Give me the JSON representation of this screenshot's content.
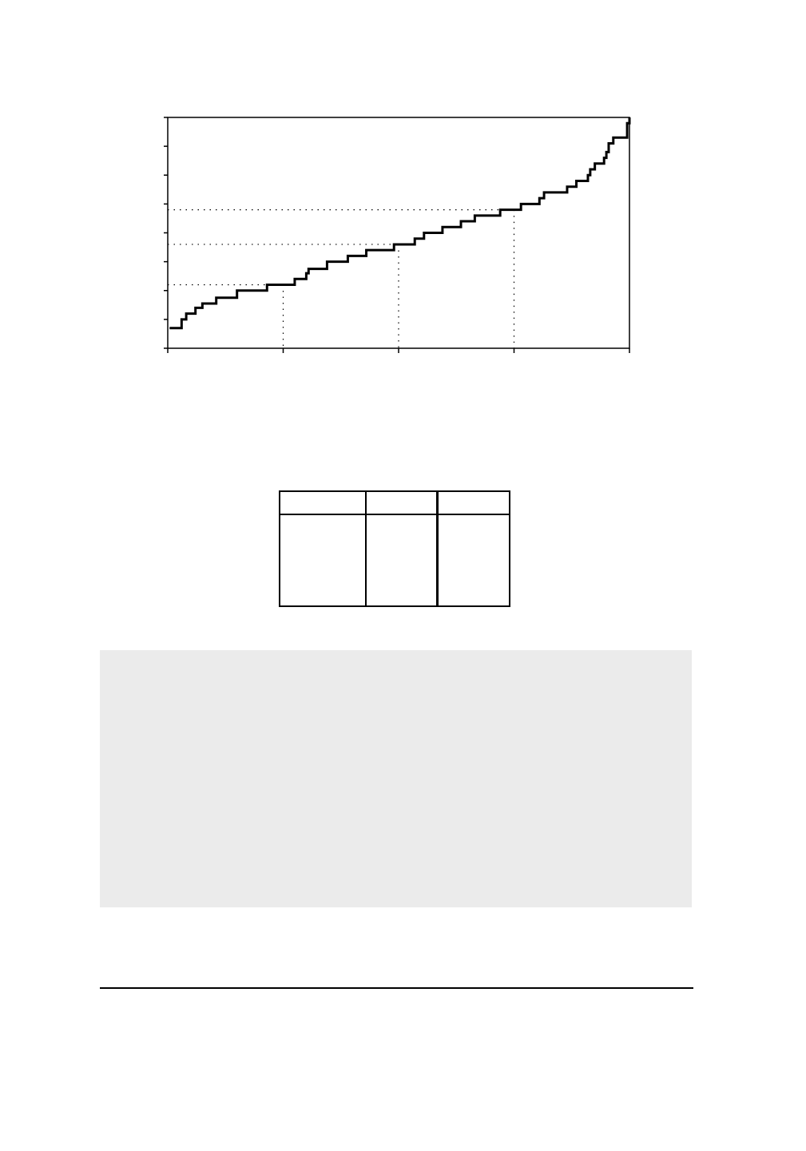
{
  "chart_data": {
    "type": "line",
    "title": "",
    "xlabel": "",
    "ylabel": "",
    "xlim": [
      0,
      1
    ],
    "ylim": [
      0,
      8
    ],
    "x_ticks": [
      0,
      0.25,
      0.5,
      0.75,
      1
    ],
    "y_ticks": [
      0,
      1,
      2,
      3,
      4,
      5,
      6,
      7,
      8
    ],
    "x_tick_labels": [],
    "y_tick_labels": [],
    "grid": false,
    "quartile_markers": [
      {
        "p": 0.25,
        "value": 2.2
      },
      {
        "p": 0.5,
        "value": 3.6
      },
      {
        "p": 0.75,
        "value": 4.8
      }
    ],
    "series": [
      {
        "step": "post",
        "points": [
          [
            0.004,
            0.7
          ],
          [
            0.03,
            1.0
          ],
          [
            0.04,
            1.2
          ],
          [
            0.06,
            1.4
          ],
          [
            0.075,
            1.55
          ],
          [
            0.105,
            1.75
          ],
          [
            0.15,
            2.0
          ],
          [
            0.215,
            2.2
          ],
          [
            0.275,
            2.4
          ],
          [
            0.3,
            2.6
          ],
          [
            0.305,
            2.75
          ],
          [
            0.345,
            3.0
          ],
          [
            0.39,
            3.2
          ],
          [
            0.43,
            3.4
          ],
          [
            0.49,
            3.6
          ],
          [
            0.535,
            3.8
          ],
          [
            0.555,
            4.0
          ],
          [
            0.595,
            4.2
          ],
          [
            0.635,
            4.4
          ],
          [
            0.665,
            4.6
          ],
          [
            0.72,
            4.8
          ],
          [
            0.765,
            5.0
          ],
          [
            0.805,
            5.2
          ],
          [
            0.815,
            5.4
          ],
          [
            0.865,
            5.6
          ],
          [
            0.885,
            5.8
          ],
          [
            0.91,
            6.0
          ],
          [
            0.915,
            6.2
          ],
          [
            0.925,
            6.4
          ],
          [
            0.945,
            6.6
          ],
          [
            0.95,
            6.8
          ],
          [
            0.955,
            7.1
          ],
          [
            0.965,
            7.3
          ],
          [
            0.995,
            7.8
          ],
          [
            1.0,
            7.8
          ]
        ]
      }
    ]
  },
  "table": {
    "header": [
      "",
      "",
      ""
    ],
    "rows": [
      [
        "",
        "",
        ""
      ]
    ]
  }
}
